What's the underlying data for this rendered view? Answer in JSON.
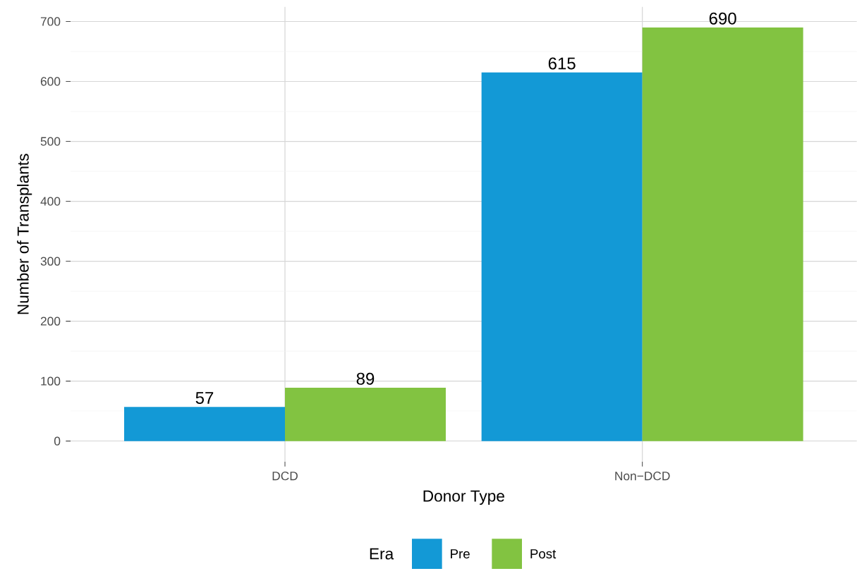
{
  "chart_data": {
    "type": "bar",
    "xlabel": "Donor Type",
    "ylabel": "Number of Transplants",
    "legend_title": "Era",
    "categories": [
      "DCD",
      "Non−DCD"
    ],
    "series": [
      {
        "name": "Pre",
        "color": "#1399d6",
        "values": [
          57,
          615
        ]
      },
      {
        "name": "Post",
        "color": "#82c341",
        "values": [
          89,
          690
        ]
      }
    ],
    "ylim": [
      -34.5,
      724.5
    ],
    "yticks": [
      0,
      100,
      200,
      300,
      400,
      500,
      600,
      700
    ],
    "grid": true,
    "legend": "bottom",
    "data_labels": true
  }
}
